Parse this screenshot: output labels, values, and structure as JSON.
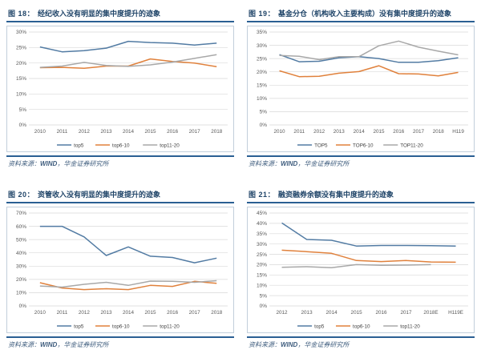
{
  "colors": {
    "grid": "#d9d9d9",
    "tick": "#595959",
    "legend_text": "#404040",
    "title_blue": "#1f4468",
    "rule_blue": "#2a5f93",
    "frame_border": "#c2cfdb",
    "accent_blue": "#527ba3",
    "accent_orange": "#e0813c",
    "accent_gray": "#a8a8a8"
  },
  "source_note": {
    "prefix": "资料来源：",
    "wind": "WIND",
    "suffix": "，华金证券研究所"
  },
  "chart_data": [
    {
      "type": "line",
      "fig_label": "图 18：",
      "title": "经纪收入没有明显的集中度提升的迹象",
      "categories": [
        "2010",
        "2011",
        "2012",
        "2013",
        "2014",
        "2015",
        "2016",
        "2017",
        "2018"
      ],
      "ylim": [
        0,
        30
      ],
      "ytick_step": 5,
      "grid": true,
      "legend_position": "bottom",
      "series": [
        {
          "name": "top5",
          "color": "#527ba3",
          "values": [
            25.2,
            23.6,
            24.0,
            24.8,
            27.0,
            26.6,
            26.4,
            25.8,
            26.4
          ]
        },
        {
          "name": "top6-10",
          "color": "#e0813c",
          "values": [
            18.5,
            18.6,
            18.3,
            19.0,
            19.0,
            21.3,
            20.5,
            20.0,
            18.8
          ]
        },
        {
          "name": "top11-20",
          "color": "#a8a8a8",
          "values": [
            18.6,
            19.0,
            20.2,
            19.2,
            18.9,
            19.4,
            20.3,
            21.5,
            22.7
          ]
        }
      ]
    },
    {
      "type": "line",
      "fig_label": "图 19：",
      "title": "基金分仓（机构收入主要构成）没有集中度提升的迹象",
      "categories": [
        "2010",
        "2011",
        "2012",
        "2013",
        "2014",
        "2015",
        "2016",
        "2017",
        "2018",
        "H119"
      ],
      "ylim": [
        0,
        35
      ],
      "ytick_step": 5,
      "grid": true,
      "legend_position": "bottom",
      "series": [
        {
          "name": "TOP5",
          "color": "#527ba3",
          "values": [
            26.5,
            23.8,
            24.0,
            25.3,
            25.7,
            25.0,
            23.6,
            23.6,
            24.2,
            25.3
          ]
        },
        {
          "name": "TOP6-10",
          "color": "#e0813c",
          "values": [
            20.4,
            18.2,
            18.3,
            19.5,
            20.1,
            22.3,
            19.3,
            19.2,
            18.5,
            19.8
          ]
        },
        {
          "name": "TOP11-20",
          "color": "#a8a8a8",
          "values": [
            26.2,
            25.9,
            24.6,
            25.7,
            25.7,
            29.8,
            31.6,
            29.3,
            27.8,
            26.4
          ]
        }
      ]
    },
    {
      "type": "line",
      "fig_label": "图 20：",
      "title": "资管收入没有明显的集中度提升的迹象",
      "categories": [
        "2010",
        "2011",
        "2012",
        "2013",
        "2014",
        "2015",
        "2016",
        "2017",
        "2018"
      ],
      "ylim": [
        0,
        70
      ],
      "ytick_step": 10,
      "grid": true,
      "legend_position": "bottom",
      "series": [
        {
          "name": "top5",
          "color": "#527ba3",
          "values": [
            60.0,
            60.0,
            52.0,
            38.0,
            44.5,
            37.5,
            36.5,
            32.5,
            36.0
          ]
        },
        {
          "name": "top6-10",
          "color": "#e0813c",
          "values": [
            17.5,
            13.5,
            12.3,
            13.0,
            12.3,
            15.5,
            14.7,
            18.5,
            17.0
          ]
        },
        {
          "name": "top11-20",
          "color": "#a8a8a8",
          "values": [
            15.0,
            14.2,
            16.3,
            17.8,
            15.5,
            18.7,
            18.5,
            17.8,
            19.0
          ]
        }
      ]
    },
    {
      "type": "line",
      "fig_label": "图 21：",
      "title": "融资融券余额没有集中度提升的迹象",
      "categories": [
        "2012",
        "2013",
        "2014",
        "2015",
        "2016",
        "2017",
        "2018E",
        "H119E"
      ],
      "ylim": [
        0,
        45
      ],
      "ytick_step": 5,
      "grid": true,
      "legend_position": "bottom",
      "series": [
        {
          "name": "top5",
          "color": "#527ba3",
          "values": [
            40.2,
            32.2,
            31.8,
            29.0,
            29.3,
            29.3,
            29.2,
            29.0
          ]
        },
        {
          "name": "top6-10",
          "color": "#e0813c",
          "values": [
            27.0,
            26.3,
            25.5,
            22.0,
            21.5,
            22.0,
            21.3,
            21.2
          ]
        },
        {
          "name": "top11-20",
          "color": "#a8a8a8",
          "values": [
            18.7,
            19.0,
            18.5,
            20.0,
            19.7,
            19.8,
            20.0,
            null
          ]
        }
      ]
    }
  ]
}
